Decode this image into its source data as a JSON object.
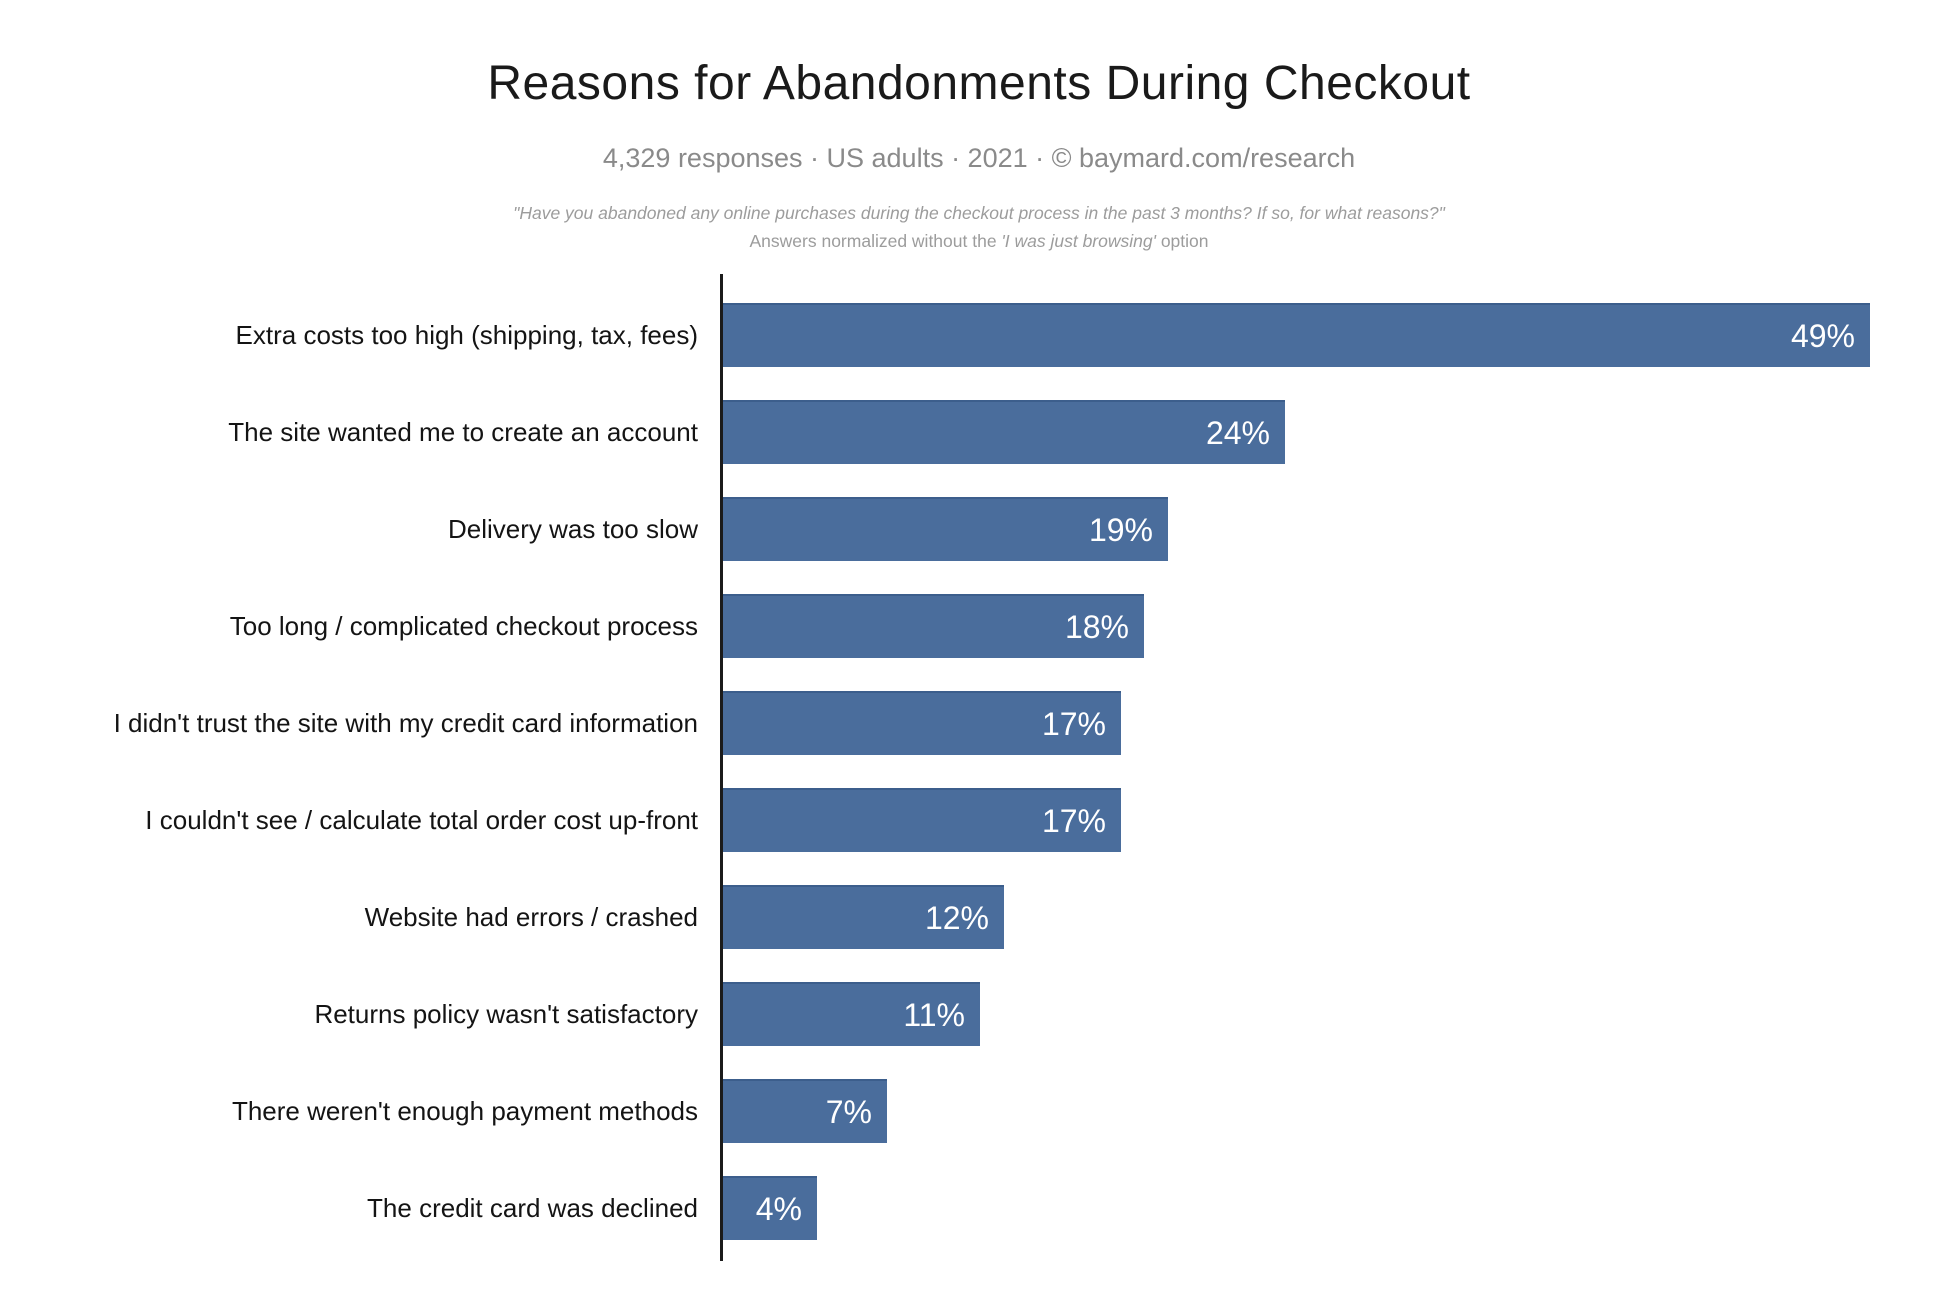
{
  "header": {
    "title": "Reasons for Abandonments During Checkout",
    "subtitle": "4,329 responses · US adults · 2021 · © baymard.com/research",
    "note_quote": "\"Have you abandoned any online purchases during the checkout process in the past 3 months? If so, for what reasons?\"",
    "note_line2": {
      "prefix": "Answers normalized without the ",
      "italic": "'I was just browsing'",
      "suffix": " option"
    }
  },
  "chart_data": {
    "type": "bar",
    "orientation": "horizontal",
    "title": "Reasons for Abandonments During Checkout",
    "subtitle": "4,329 responses · US adults · 2021 · © baymard.com/research",
    "footnote_quote": "\"Have you abandoned any online purchases during the checkout process in the past 3 months? If so, for what reasons?\"",
    "footnote_note": "Answers normalized without the 'I was just browsing' option",
    "categories": [
      "Extra costs too high (shipping, tax, fees)",
      "The site wanted me to create an account",
      "Delivery was too slow",
      "Too long / complicated checkout process",
      "I didn't trust the site with my credit card information",
      "I couldn't see / calculate total order cost up-front",
      "Website had errors / crashed",
      "Returns policy wasn't satisfactory",
      "There weren't enough payment methods",
      "The credit card was declined"
    ],
    "values": [
      49,
      24,
      19,
      18,
      17,
      17,
      12,
      11,
      7,
      4
    ],
    "value_suffix": "%",
    "xlim": [
      0,
      50
    ],
    "grid": false,
    "legend": false,
    "value_label_position": "inside-end",
    "bar_color": "#4a6d9c",
    "bar_edge_color": "#3c5e8c",
    "axis_line_color": "#1b1b1b",
    "value_label_color": "#ffffff",
    "category_label_color": "#141414"
  }
}
